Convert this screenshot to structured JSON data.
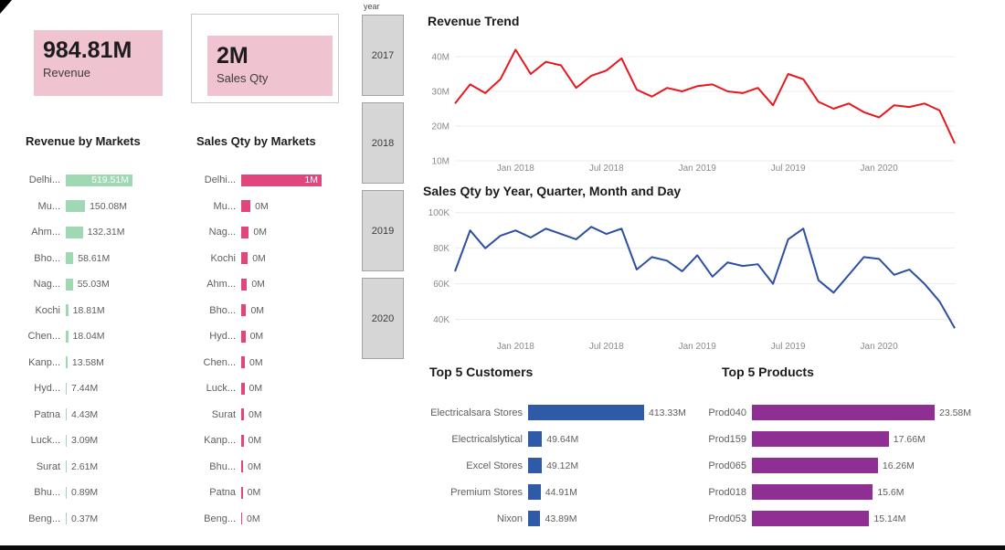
{
  "kpis": [
    {
      "value": "984.81M",
      "label": "Revenue"
    },
    {
      "value": "2M",
      "label": "Sales Qty"
    }
  ],
  "year_slicer": {
    "title": "year",
    "options": [
      "2017",
      "2018",
      "2019",
      "2020"
    ]
  },
  "colors": {
    "kpi_bg": "#f0c3d1",
    "green_bar": "#a0d8b4",
    "pink_bar": "#e0457c",
    "red_line": "#e8171d",
    "blue_line": "#2c4fa3",
    "blue_bar": "#2e5aa7",
    "purple_bar": "#8f2e93",
    "slicer_box_bg": "#d6d6d6"
  },
  "chart_data": [
    {
      "id": "revenue-by-markets",
      "type": "bar",
      "orientation": "horizontal",
      "title": "Revenue by Markets",
      "categories": [
        "Delhi...",
        "Mu...",
        "Ahm...",
        "Bho...",
        "Nag...",
        "Kochi",
        "Chen...",
        "Kanp...",
        "Hyd...",
        "Patna",
        "Luck...",
        "Surat",
        "Bhu...",
        "Beng..."
      ],
      "values": [
        519.51,
        150.08,
        132.31,
        58.61,
        55.03,
        18.81,
        18.04,
        13.58,
        7.44,
        4.43,
        3.09,
        2.61,
        0.89,
        0.37
      ],
      "value_labels": [
        "519.51M",
        "150.08M",
        "132.31M",
        "58.61M",
        "55.03M",
        "18.81M",
        "18.04M",
        "13.58M",
        "7.44M",
        "4.43M",
        "3.09M",
        "2.61M",
        "0.89M",
        "0.37M"
      ],
      "bar_color": "#a0d8b4"
    },
    {
      "id": "sales-qty-by-markets",
      "type": "bar",
      "orientation": "horizontal",
      "title": "Sales Qty by Markets",
      "categories": [
        "Delhi...",
        "Mu...",
        "Nag...",
        "Kochi",
        "Ahm...",
        "Bho...",
        "Hyd...",
        "Chen...",
        "Luck...",
        "Surat",
        "Kanp...",
        "Bhu...",
        "Patna",
        "Beng..."
      ],
      "values": [
        1.0,
        0.115,
        0.095,
        0.082,
        0.072,
        0.062,
        0.052,
        0.046,
        0.04,
        0.034,
        0.029,
        0.024,
        0.019,
        0.012
      ],
      "value_labels": [
        "1M",
        "0M",
        "0M",
        "0M",
        "0M",
        "0M",
        "0M",
        "0M",
        "0M",
        "0M",
        "0M",
        "0M",
        "0M",
        "0M"
      ],
      "bar_color": "#e0457c"
    },
    {
      "id": "revenue-trend",
      "type": "line",
      "title": "Revenue Trend",
      "line_color": "#e8171d",
      "ylim": [
        10,
        45
      ],
      "yticks": [
        {
          "v": 10,
          "label": "10M"
        },
        {
          "v": 20,
          "label": "20M"
        },
        {
          "v": 30,
          "label": "30M"
        },
        {
          "v": 40,
          "label": "40M"
        }
      ],
      "xticks": [
        {
          "i": 4,
          "label": "Jan 2018"
        },
        {
          "i": 10,
          "label": "Jul 2018"
        },
        {
          "i": 16,
          "label": "Jan 2019"
        },
        {
          "i": 22,
          "label": "Jul 2019"
        },
        {
          "i": 28,
          "label": "Jan 2020"
        }
      ],
      "values": [
        26.5,
        32,
        29.5,
        33.5,
        42,
        35,
        38.5,
        37.5,
        31,
        34.5,
        36,
        39.5,
        30.5,
        28.5,
        31,
        30,
        31.5,
        32,
        30,
        29.5,
        31,
        26,
        35,
        33.5,
        27,
        25,
        26.5,
        24,
        22.5,
        26,
        25.5,
        26.5,
        24.5,
        15
      ]
    },
    {
      "id": "sales-qty-trend",
      "type": "line",
      "title": "Sales Qty by Year, Quarter, Month and Day",
      "line_color": "#2c4fa3",
      "ylim": [
        30,
        105
      ],
      "yticks": [
        {
          "v": 40,
          "label": "40K"
        },
        {
          "v": 60,
          "label": "60K"
        },
        {
          "v": 80,
          "label": "80K"
        },
        {
          "v": 100,
          "label": "100K"
        }
      ],
      "xticks": [
        {
          "i": 4,
          "label": "Jan 2018"
        },
        {
          "i": 10,
          "label": "Jul 2018"
        },
        {
          "i": 16,
          "label": "Jan 2019"
        },
        {
          "i": 22,
          "label": "Jul 2019"
        },
        {
          "i": 28,
          "label": "Jan 2020"
        }
      ],
      "values": [
        67,
        90,
        80,
        87,
        90,
        86,
        91,
        88,
        85,
        92,
        88,
        91,
        68,
        75,
        73,
        67,
        76,
        64,
        72,
        70,
        71,
        60,
        85,
        91,
        62,
        55,
        65,
        75,
        74,
        65,
        68,
        60,
        50,
        35
      ]
    },
    {
      "id": "top-5-customers",
      "type": "bar",
      "orientation": "horizontal",
      "title": "Top 5 Customers",
      "categories": [
        "Electricalsara Stores",
        "Electricalslytical",
        "Excel Stores",
        "Premium Stores",
        "Nixon"
      ],
      "values": [
        413.33,
        49.64,
        49.12,
        44.91,
        43.89
      ],
      "value_labels": [
        "413.33M",
        "49.64M",
        "49.12M",
        "44.91M",
        "43.89M"
      ],
      "bar_color": "#2e5aa7"
    },
    {
      "id": "top-5-products",
      "type": "bar",
      "orientation": "horizontal",
      "title": "Top 5 Products",
      "categories": [
        "Prod040",
        "Prod159",
        "Prod065",
        "Prod018",
        "Prod053"
      ],
      "values": [
        23.58,
        17.66,
        16.26,
        15.6,
        15.14
      ],
      "value_labels": [
        "23.58M",
        "17.66M",
        "16.26M",
        "15.6M",
        "15.14M"
      ],
      "bar_color": "#8f2e93"
    }
  ]
}
